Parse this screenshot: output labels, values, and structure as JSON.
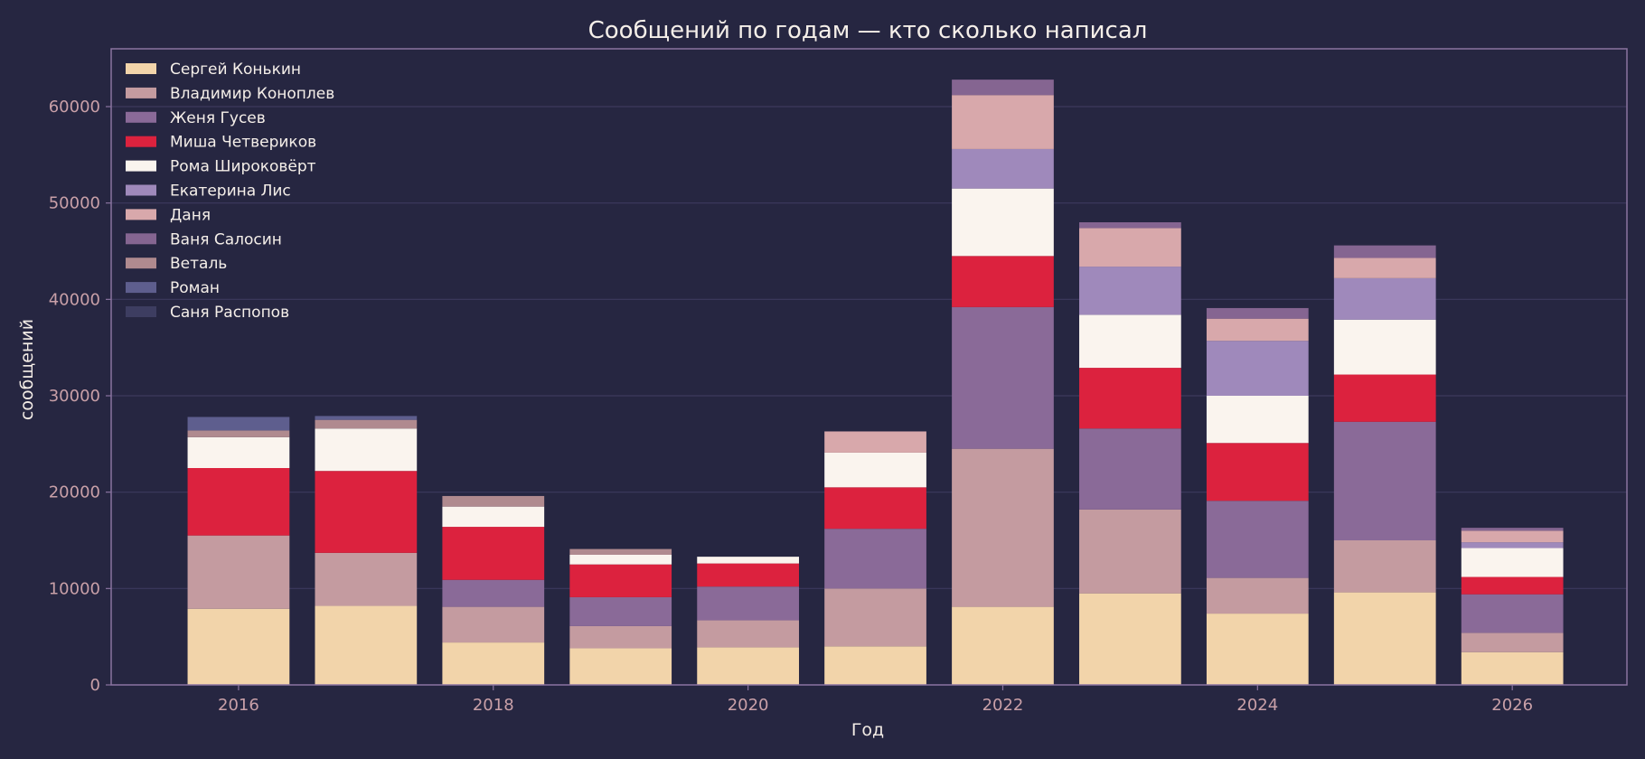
{
  "chart_data": {
    "type": "bar",
    "stacked": true,
    "title": "Сообщений по годам — кто сколько написал",
    "xlabel": "Год",
    "ylabel": "сообщений",
    "xlim": [
      2015.0,
      2026.9
    ],
    "ylim": [
      0,
      66000
    ],
    "x_ticks": [
      2016,
      2018,
      2020,
      2022,
      2024,
      2026
    ],
    "y_ticks": [
      0,
      10000,
      20000,
      30000,
      40000,
      50000,
      60000
    ],
    "grid": "horizontal",
    "legend_position": "top-left",
    "years": [
      2016,
      2017,
      2018,
      2019,
      2020,
      2021,
      2022,
      2023,
      2024,
      2025,
      2026
    ],
    "series": [
      {
        "name": "Сергей Конькин",
        "color": "#f2d4aa",
        "values": [
          7900,
          8200,
          4400,
          3800,
          3900,
          4000,
          8100,
          9500,
          7400,
          9600,
          3400
        ]
      },
      {
        "name": "Владимир Коноплев",
        "color": "#c49ba0",
        "values": [
          7600,
          5500,
          3700,
          2300,
          2800,
          6000,
          16400,
          8700,
          3700,
          5400,
          2000
        ]
      },
      {
        "name": "Женя Гусев",
        "color": "#8a6a98",
        "values": [
          0,
          0,
          2800,
          3000,
          3500,
          6200,
          14700,
          8400,
          8000,
          12300,
          4000
        ]
      },
      {
        "name": "Миша Четвериков",
        "color": "#dc223e",
        "values": [
          7000,
          8500,
          5500,
          3400,
          2400,
          4300,
          5300,
          6300,
          6000,
          4900,
          1800
        ]
      },
      {
        "name": "Рома Широковёрт",
        "color": "#faf4ee",
        "values": [
          3200,
          4400,
          2100,
          1000,
          700,
          3600,
          7000,
          5500,
          4900,
          5700,
          3000
        ]
      },
      {
        "name": "Екатерина Лис",
        "color": "#9f89bb",
        "values": [
          0,
          0,
          0,
          0,
          0,
          0,
          4100,
          5000,
          5700,
          4300,
          600
        ]
      },
      {
        "name": "Даня",
        "color": "#d8a8ab",
        "values": [
          0,
          0,
          0,
          0,
          0,
          2200,
          5600,
          4000,
          2300,
          2100,
          1200
        ]
      },
      {
        "name": "Ваня Салосин",
        "color": "#856591",
        "values": [
          0,
          0,
          0,
          0,
          0,
          0,
          1600,
          600,
          1100,
          1300,
          300
        ]
      },
      {
        "name": "Веталь",
        "color": "#b08a8f",
        "values": [
          700,
          900,
          1100,
          600,
          0,
          0,
          0,
          0,
          0,
          0,
          0
        ]
      },
      {
        "name": "Роман",
        "color": "#5e5e8e",
        "values": [
          1400,
          400,
          0,
          0,
          0,
          0,
          0,
          0,
          0,
          0,
          0
        ]
      },
      {
        "name": "Саня Распопов",
        "color": "#3d3d61",
        "values": [
          0,
          0,
          0,
          0,
          0,
          0,
          0,
          0,
          0,
          0,
          0
        ]
      }
    ]
  },
  "colors": {
    "background": "#262641",
    "axes_frame": "#8a73a0",
    "grid": "#3c3a5e",
    "tick_label": "#c9a0a8",
    "text": "#f5efe9"
  }
}
